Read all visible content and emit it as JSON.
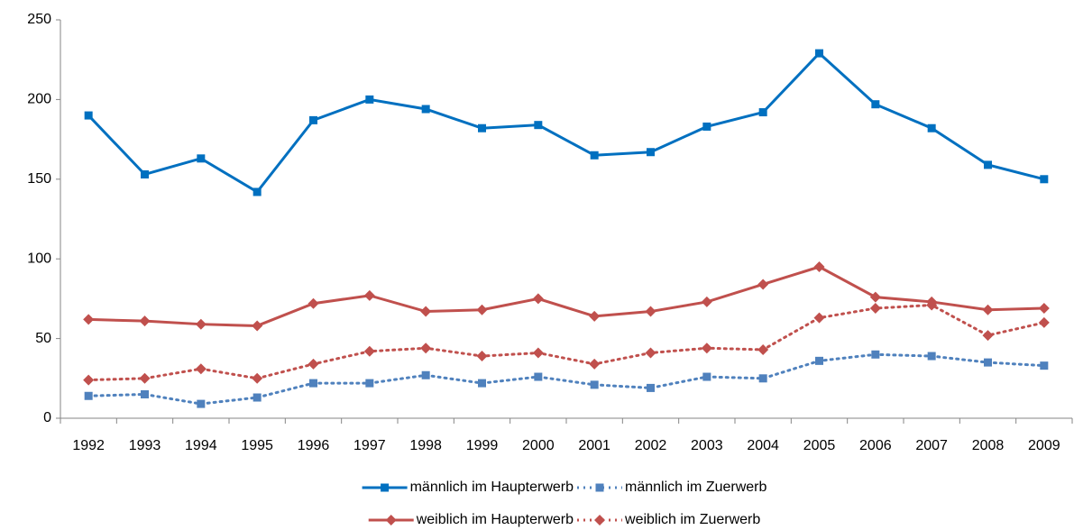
{
  "chart_data": {
    "type": "line",
    "categories": [
      "1992",
      "1993",
      "1994",
      "1995",
      "1996",
      "1997",
      "1998",
      "1999",
      "2000",
      "2001",
      "2002",
      "2003",
      "2004",
      "2005",
      "2006",
      "2007",
      "2008",
      "2009"
    ],
    "series": [
      {
        "name": "männlich im Haupterwerb",
        "color": "#0070c0",
        "dash": "solid",
        "marker": "square",
        "values": [
          190,
          153,
          163,
          142,
          187,
          200,
          194,
          182,
          184,
          165,
          167,
          183,
          192,
          229,
          197,
          182,
          159,
          150
        ]
      },
      {
        "name": "männlich im Zuerwerb",
        "color": "#4f81bd",
        "dash": "dotted",
        "marker": "square",
        "values": [
          14,
          15,
          9,
          13,
          22,
          22,
          27,
          22,
          26,
          21,
          19,
          26,
          25,
          36,
          40,
          39,
          35,
          33
        ]
      },
      {
        "name": "weiblich im Haupterwerb",
        "color": "#c0504d",
        "dash": "solid",
        "marker": "diamond",
        "values": [
          62,
          61,
          59,
          58,
          72,
          77,
          67,
          68,
          75,
          64,
          67,
          73,
          84,
          95,
          76,
          73,
          68,
          69
        ]
      },
      {
        "name": "weiblich im Zuerwerb",
        "color": "#c0504d",
        "dash": "dotted",
        "marker": "diamond",
        "values": [
          24,
          25,
          31,
          25,
          34,
          42,
          44,
          39,
          41,
          34,
          41,
          44,
          43,
          63,
          69,
          71,
          52,
          60
        ]
      }
    ],
    "ylim": [
      0,
      250
    ],
    "yticks": [
      0,
      50,
      100,
      150,
      200,
      250
    ],
    "grid": false,
    "legend": "bottom"
  }
}
